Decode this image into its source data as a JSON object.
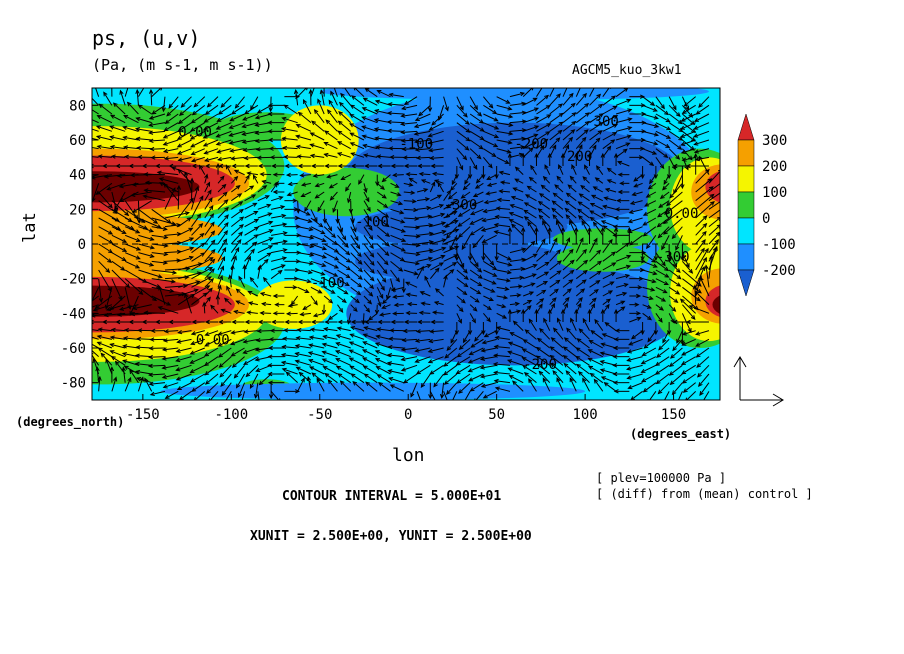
{
  "chart_data": {
    "type": "contour",
    "title": "ps, (u,v)",
    "units": "(Pa, (m s-1, m s-1))",
    "experiment": "AGCM5_kuo_3kw1",
    "xlabel": "lon",
    "ylabel": "lat",
    "x_unit_note": "(degrees_east)",
    "y_unit_note": "(degrees_north)",
    "x_ticks": [
      "-150",
      "-100",
      "-50",
      "0",
      "50",
      "100",
      "150"
    ],
    "x_tick_values": [
      -150,
      -100,
      -50,
      0,
      50,
      100,
      150
    ],
    "y_ticks": [
      "80",
      "60",
      "40",
      "20",
      "0",
      "-20",
      "-40",
      "-60",
      "-80"
    ],
    "y_tick_values": [
      80,
      60,
      40,
      20,
      0,
      -20,
      -40,
      -60,
      -80
    ],
    "xlim": [
      -178.75,
      176.25
    ],
    "ylim": [
      -90,
      90
    ],
    "colorbar": {
      "labels": [
        "300",
        "200",
        "100",
        "0",
        "-100",
        "-200"
      ],
      "levels": [
        300,
        200,
        100,
        0,
        -100,
        -200
      ],
      "colors": [
        "#d62728",
        "#f5a000",
        "#f5f500",
        "#33cc33",
        "#00e5ff",
        "#1f8fff",
        "#1a5fd0"
      ]
    },
    "contour_labels": [
      "0.00",
      "-100",
      "-200",
      "-300",
      "-200",
      "0.00",
      "-100",
      "-300",
      "-100",
      "-200",
      "-300",
      "0.00"
    ],
    "field_colors": {
      "deep_low": "#1a5fd0",
      "low": "#1f8fff",
      "neg": "#00e5ff",
      "zero": "#33cc33",
      "pos": "#f5f500",
      "mid": "#f5a000",
      "high": "#d62728",
      "peak": "#6b0000"
    },
    "notes": [
      "[ plev=100000 Pa ]",
      "[ (diff) from (mean) control ]"
    ],
    "contour_interval": "CONTOUR INTERVAL = 5.000E+01",
    "vector_units": "XUNIT = 2.500E+00, YUNIT = 2.500E+00"
  }
}
